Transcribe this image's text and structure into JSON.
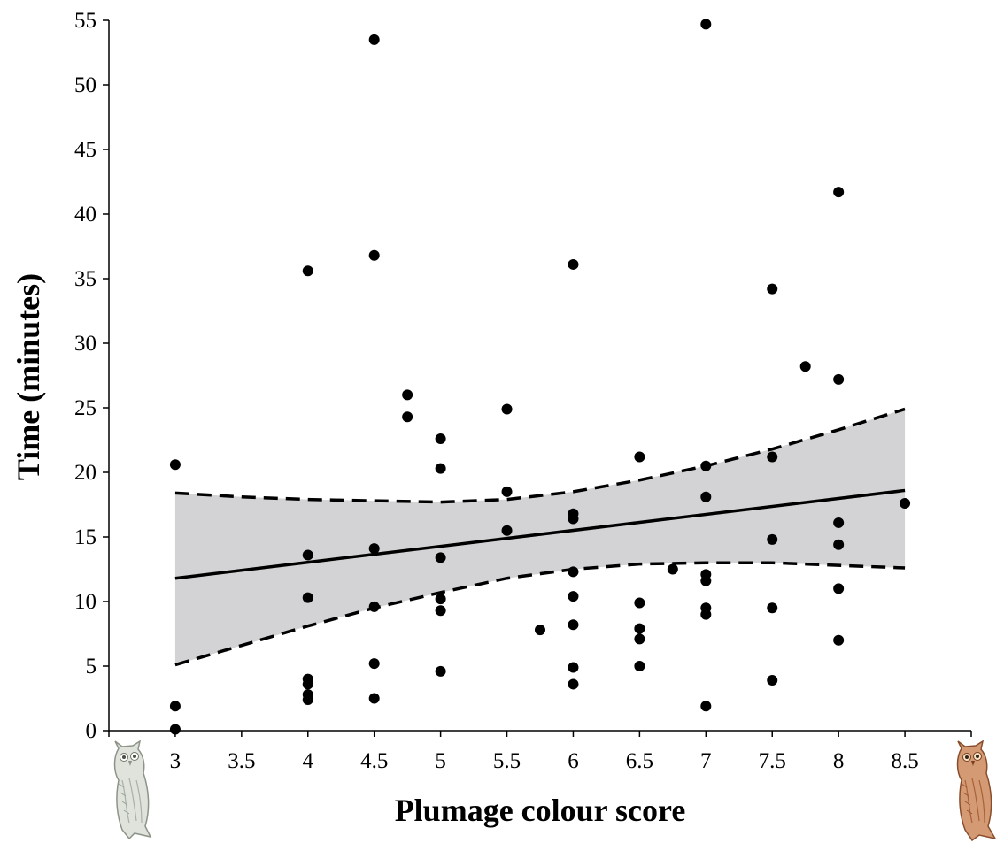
{
  "chart_data": {
    "type": "scatter",
    "title": "",
    "xlabel": "Plumage colour score",
    "ylabel": "Time (minutes)",
    "xlim": [
      2.5,
      9.0
    ],
    "ylim": [
      0,
      55
    ],
    "x_ticks": [
      3,
      3.5,
      4,
      4.5,
      5,
      5.5,
      6,
      6.5,
      7,
      7.5,
      8,
      8.5
    ],
    "x_tick_labels": [
      "3",
      "3.5",
      "4",
      "4.5",
      "5",
      "5.5",
      "6",
      "6.5",
      "7",
      "7.5",
      "8",
      "8.5"
    ],
    "y_ticks": [
      0,
      5,
      10,
      15,
      20,
      25,
      30,
      35,
      40,
      45,
      50,
      55
    ],
    "y_tick_labels": [
      "0",
      "5",
      "10",
      "15",
      "20",
      "25",
      "30",
      "35",
      "40",
      "45",
      "50",
      "55"
    ],
    "grid": false,
    "legend": false,
    "points": [
      [
        3,
        20.6
      ],
      [
        3,
        1.9
      ],
      [
        3,
        0.1
      ],
      [
        4,
        35.6
      ],
      [
        4,
        13.6
      ],
      [
        4,
        10.3
      ],
      [
        4,
        4.0
      ],
      [
        4,
        3.6
      ],
      [
        4,
        2.8
      ],
      [
        4,
        2.4
      ],
      [
        4.5,
        53.5
      ],
      [
        4.5,
        36.8
      ],
      [
        4.5,
        14.1
      ],
      [
        4.5,
        9.6
      ],
      [
        4.5,
        5.2
      ],
      [
        4.5,
        2.5
      ],
      [
        4.75,
        26.0
      ],
      [
        4.75,
        24.3
      ],
      [
        5,
        22.6
      ],
      [
        5,
        20.3
      ],
      [
        5,
        13.4
      ],
      [
        5,
        10.2
      ],
      [
        5,
        9.3
      ],
      [
        5,
        4.6
      ],
      [
        5.5,
        24.9
      ],
      [
        5.5,
        18.5
      ],
      [
        5.5,
        15.5
      ],
      [
        5.75,
        7.8
      ],
      [
        6,
        36.1
      ],
      [
        6,
        16.8
      ],
      [
        6,
        16.4
      ],
      [
        6,
        12.3
      ],
      [
        6,
        10.4
      ],
      [
        6,
        8.2
      ],
      [
        6,
        4.9
      ],
      [
        6,
        3.6
      ],
      [
        6.5,
        21.2
      ],
      [
        6.5,
        9.9
      ],
      [
        6.5,
        7.9
      ],
      [
        6.5,
        7.1
      ],
      [
        6.5,
        5.0
      ],
      [
        6.75,
        12.5
      ],
      [
        7,
        54.7
      ],
      [
        7,
        20.5
      ],
      [
        7,
        18.1
      ],
      [
        7,
        12.1
      ],
      [
        7,
        11.6
      ],
      [
        7,
        9.5
      ],
      [
        7,
        9.0
      ],
      [
        7,
        1.9
      ],
      [
        7.5,
        34.2
      ],
      [
        7.5,
        21.2
      ],
      [
        7.5,
        14.8
      ],
      [
        7.5,
        9.5
      ],
      [
        7.5,
        3.9
      ],
      [
        7.75,
        28.2
      ],
      [
        8,
        41.7
      ],
      [
        8,
        27.2
      ],
      [
        8,
        16.1
      ],
      [
        8,
        14.4
      ],
      [
        8,
        11.0
      ],
      [
        8,
        7.0
      ],
      [
        8.5,
        17.6
      ]
    ],
    "fit_line": {
      "x": [
        3,
        8.5
      ],
      "y": [
        11.8,
        18.6
      ]
    },
    "ci_upper": {
      "x": [
        3,
        3.5,
        4,
        4.5,
        5,
        5.5,
        6,
        6.5,
        7,
        7.5,
        8,
        8.5
      ],
      "y": [
        18.4,
        18.1,
        17.9,
        17.8,
        17.7,
        17.9,
        18.5,
        19.4,
        20.5,
        21.8,
        23.3,
        24.9
      ]
    },
    "ci_lower": {
      "x": [
        3,
        3.5,
        4,
        4.5,
        5,
        5.5,
        6,
        6.5,
        7,
        7.5,
        8,
        8.5
      ],
      "y": [
        5.1,
        6.6,
        8.1,
        9.5,
        10.7,
        11.8,
        12.5,
        12.9,
        13.0,
        13.0,
        12.8,
        12.6
      ]
    },
    "colors": {
      "points": "#000000",
      "band": "#d3d2d4",
      "line": "#000000",
      "owl_left": "#d8ddd6",
      "owl_right": "#c98a66"
    },
    "icons": [
      "grey-owl-icon",
      "rufous-owl-icon"
    ]
  }
}
